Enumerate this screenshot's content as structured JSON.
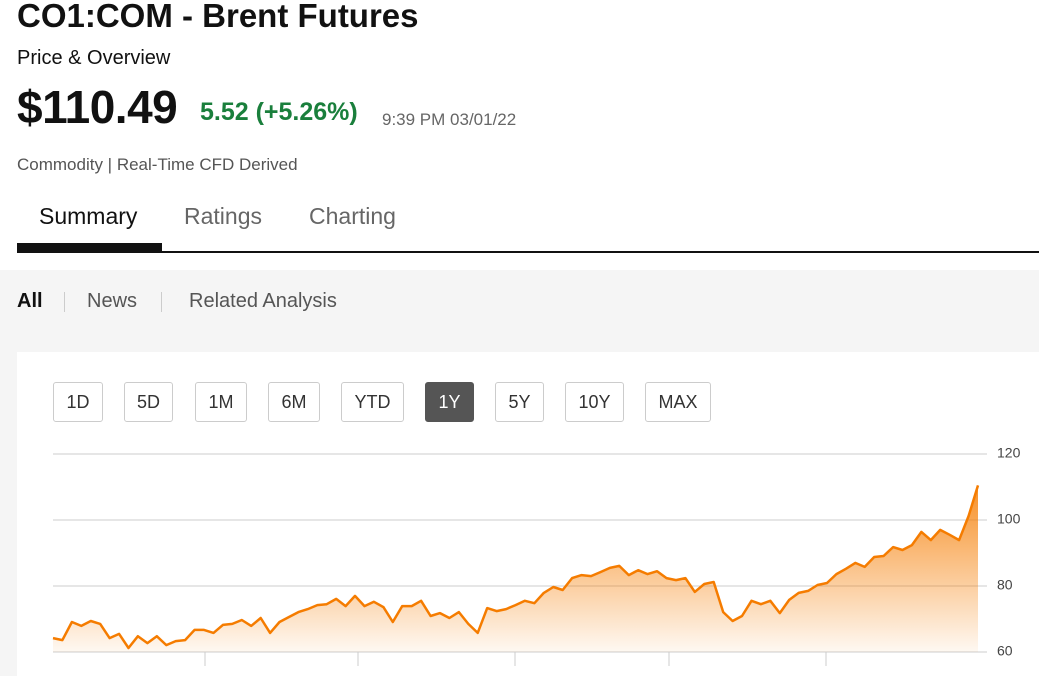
{
  "header": {
    "title": "CO1:COM - Brent Futures",
    "subtitle": "Price & Overview",
    "price": "$110.49",
    "change": "5.52 (+5.26%)",
    "time": "9:39 PM 03/01/22",
    "meta": "Commodity | Real-Time CFD Derived"
  },
  "tabs": [
    "Summary",
    "Ratings",
    "Charting"
  ],
  "filters": [
    "All",
    "News",
    "Related Analysis"
  ],
  "ranges": [
    "1D",
    "5D",
    "1M",
    "6M",
    "YTD",
    "1Y",
    "5Y",
    "10Y",
    "MAX"
  ],
  "chart_data": {
    "type": "area",
    "color": "#f57c00",
    "values": [
      64.2,
      63.6,
      69.1,
      67.9,
      69.4,
      68.5,
      64.2,
      65.5,
      61.2,
      64.8,
      62.7,
      64.8,
      62.1,
      63.3,
      63.6,
      66.7,
      66.7,
      65.8,
      68.2,
      68.5,
      69.7,
      67.9,
      70.3,
      65.8,
      69.1,
      70.6,
      72.1,
      73.0,
      74.2,
      74.5,
      76.1,
      73.9,
      77.0,
      73.9,
      75.2,
      73.6,
      69.1,
      73.9,
      73.9,
      75.5,
      70.9,
      71.8,
      70.3,
      72.1,
      68.5,
      65.8,
      73.3,
      72.4,
      73.0,
      74.2,
      75.5,
      74.8,
      77.9,
      79.7,
      78.8,
      82.4,
      83.3,
      83.0,
      84.2,
      85.5,
      86.1,
      83.3,
      84.8,
      83.6,
      84.5,
      82.4,
      81.8,
      82.4,
      78.2,
      80.6,
      81.2,
      72.1,
      69.4,
      70.9,
      75.5,
      74.5,
      75.5,
      71.8,
      75.8,
      77.9,
      78.5,
      80.3,
      80.9,
      83.6,
      85.2,
      87.0,
      85.8,
      88.8,
      89.1,
      91.8,
      90.9,
      92.4,
      96.4,
      93.9,
      97.0,
      95.5,
      93.9,
      101.2,
      110.49
    ],
    "ylim": [
      60,
      120
    ],
    "yticks": [
      60,
      80,
      100,
      120
    ],
    "grid": true
  }
}
